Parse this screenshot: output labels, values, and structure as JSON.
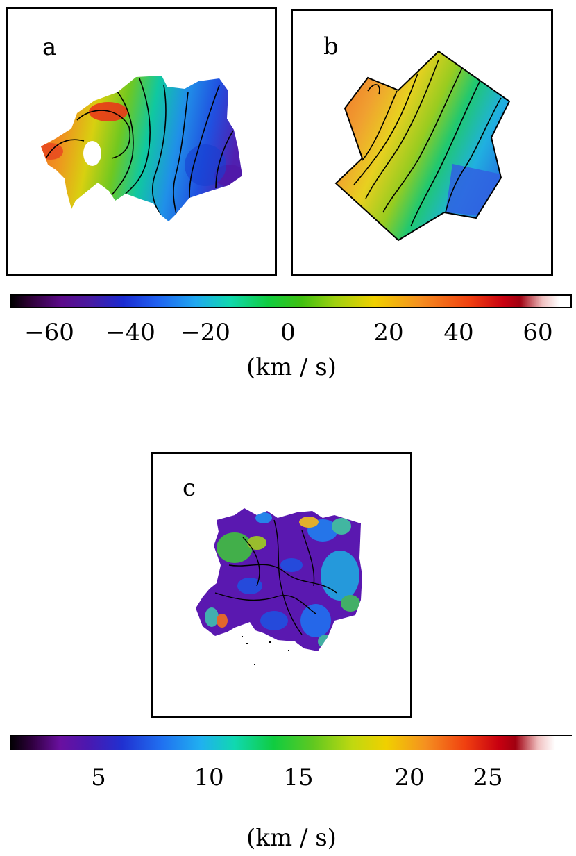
{
  "panels": {
    "a": {
      "label": "a"
    },
    "b": {
      "label": "b"
    },
    "c": {
      "label": "c"
    }
  },
  "velocity_colorbar": {
    "ticks": [
      "−60",
      "−40",
      "−20",
      "0",
      "20",
      "40",
      "60"
    ],
    "unit": "(km / s)"
  },
  "dispersion_colorbar": {
    "ticks": [
      "5",
      "10",
      "15",
      "20",
      "25"
    ],
    "unit": "(km / s)"
  },
  "colors": {
    "frame": "#000000",
    "background": "#ffffff"
  }
}
